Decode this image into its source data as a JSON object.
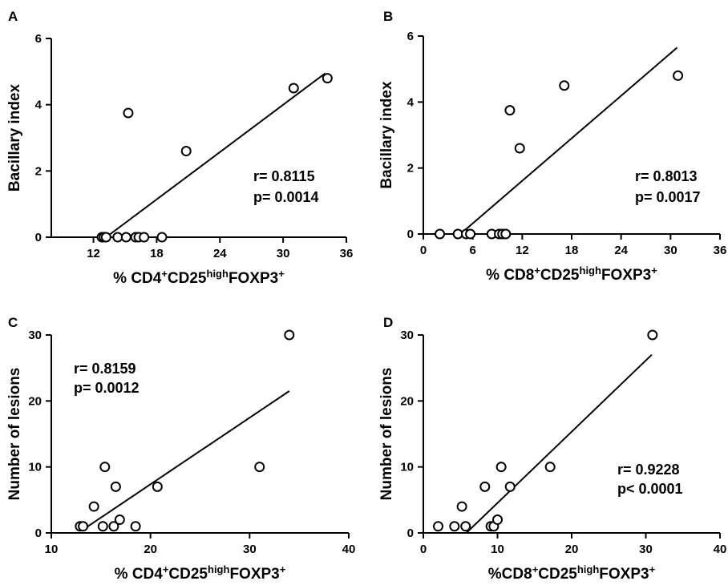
{
  "chart_data": [
    {
      "panel": "A",
      "type": "scatter",
      "xlabel": {
        "main": "%  CD4",
        "sup1": "+",
        "mid": "CD25",
        "sup2": "high",
        "tail": "FOXP3",
        "sup3": "+"
      },
      "ylabel": "Bacillary index",
      "xlim": [
        8,
        36
      ],
      "ylim": [
        0,
        6
      ],
      "xticks": [
        12,
        18,
        24,
        30,
        36
      ],
      "yticks": [
        0,
        2,
        4,
        6
      ],
      "points": [
        {
          "x": 12.8,
          "y": 0
        },
        {
          "x": 13.0,
          "y": 0
        },
        {
          "x": 13.2,
          "y": 0
        },
        {
          "x": 14.3,
          "y": 0
        },
        {
          "x": 15.1,
          "y": 0
        },
        {
          "x": 16.0,
          "y": 0
        },
        {
          "x": 16.3,
          "y": 0
        },
        {
          "x": 16.8,
          "y": 0
        },
        {
          "x": 18.5,
          "y": 0
        },
        {
          "x": 15.3,
          "y": 3.75
        },
        {
          "x": 20.8,
          "y": 2.6
        },
        {
          "x": 31.0,
          "y": 4.5
        },
        {
          "x": 34.2,
          "y": 4.8
        }
      ],
      "fit": {
        "x": [
          13.2,
          34.0
        ],
        "y": [
          0,
          4.95
        ]
      },
      "r_text": "r= 0.8115",
      "p_text": "p= 0.0014"
    },
    {
      "panel": "B",
      "type": "scatter",
      "xlabel": {
        "main": "%  CD8",
        "sup1": "+",
        "mid": "CD25",
        "sup2": "high",
        "tail": "FOXP3",
        "sup3": "+"
      },
      "ylabel": "Bacillary index",
      "xlim": [
        0,
        36
      ],
      "ylim": [
        0,
        6
      ],
      "xticks": [
        0,
        6,
        12,
        18,
        24,
        30,
        36
      ],
      "yticks": [
        0,
        2,
        4,
        6
      ],
      "points": [
        {
          "x": 2.0,
          "y": 0
        },
        {
          "x": 4.2,
          "y": 0
        },
        {
          "x": 5.2,
          "y": 0
        },
        {
          "x": 5.7,
          "y": 0
        },
        {
          "x": 8.3,
          "y": 0
        },
        {
          "x": 9.2,
          "y": 0
        },
        {
          "x": 9.6,
          "y": 0
        },
        {
          "x": 10.0,
          "y": 0
        },
        {
          "x": 10.5,
          "y": 3.75
        },
        {
          "x": 11.7,
          "y": 2.6
        },
        {
          "x": 17.1,
          "y": 4.5
        },
        {
          "x": 30.9,
          "y": 4.8
        }
      ],
      "fit": {
        "x": [
          4.5,
          30.8
        ],
        "y": [
          0,
          5.65
        ]
      },
      "r_text": "r= 0.8013",
      "p_text": "p= 0.0017"
    },
    {
      "panel": "C",
      "type": "scatter",
      "xlabel": {
        "main": "%  CD4",
        "sup1": "+",
        "mid": "CD25",
        "sup2": "high",
        "tail": "FOXP3",
        "sup3": "+"
      },
      "ylabel": "Number of lesions",
      "xlim": [
        10,
        40
      ],
      "ylim": [
        0,
        30
      ],
      "xticks": [
        10,
        20,
        30,
        40
      ],
      "yticks": [
        0,
        10,
        20,
        30
      ],
      "points": [
        {
          "x": 12.9,
          "y": 1
        },
        {
          "x": 13.2,
          "y": 1
        },
        {
          "x": 14.3,
          "y": 4
        },
        {
          "x": 15.2,
          "y": 1
        },
        {
          "x": 15.4,
          "y": 10
        },
        {
          "x": 16.3,
          "y": 1
        },
        {
          "x": 16.5,
          "y": 7
        },
        {
          "x": 16.9,
          "y": 2
        },
        {
          "x": 18.5,
          "y": 1
        },
        {
          "x": 20.7,
          "y": 7
        },
        {
          "x": 31.0,
          "y": 10
        },
        {
          "x": 34.0,
          "y": 30
        }
      ],
      "fit": {
        "x": [
          13.3,
          34.0
        ],
        "y": [
          0.6,
          21.5
        ]
      },
      "r_text": "r= 0.8159",
      "p_text": "p= 0.0012"
    },
    {
      "panel": "D",
      "type": "scatter",
      "xlabel": {
        "main": "%CD8",
        "sup1": "+",
        "mid": "CD25",
        "sup2": "high",
        "tail": "FOXP3",
        "sup3": "+"
      },
      "ylabel": "Number of lesions",
      "xlim": [
        0,
        40
      ],
      "ylim": [
        0,
        30
      ],
      "xticks": [
        0,
        10,
        20,
        30,
        40
      ],
      "yticks": [
        0,
        10,
        20,
        30
      ],
      "points": [
        {
          "x": 2.0,
          "y": 1
        },
        {
          "x": 4.2,
          "y": 1
        },
        {
          "x": 5.2,
          "y": 4
        },
        {
          "x": 5.7,
          "y": 1
        },
        {
          "x": 8.3,
          "y": 7
        },
        {
          "x": 9.1,
          "y": 1
        },
        {
          "x": 9.5,
          "y": 1
        },
        {
          "x": 10.0,
          "y": 2
        },
        {
          "x": 10.5,
          "y": 10
        },
        {
          "x": 11.7,
          "y": 7
        },
        {
          "x": 17.1,
          "y": 10
        },
        {
          "x": 30.9,
          "y": 30
        }
      ],
      "fit": {
        "x": [
          5.8,
          30.8
        ],
        "y": [
          0,
          27.0
        ]
      },
      "r_text": "r= 0.9228",
      "p_text": "p< 0.0001"
    }
  ]
}
